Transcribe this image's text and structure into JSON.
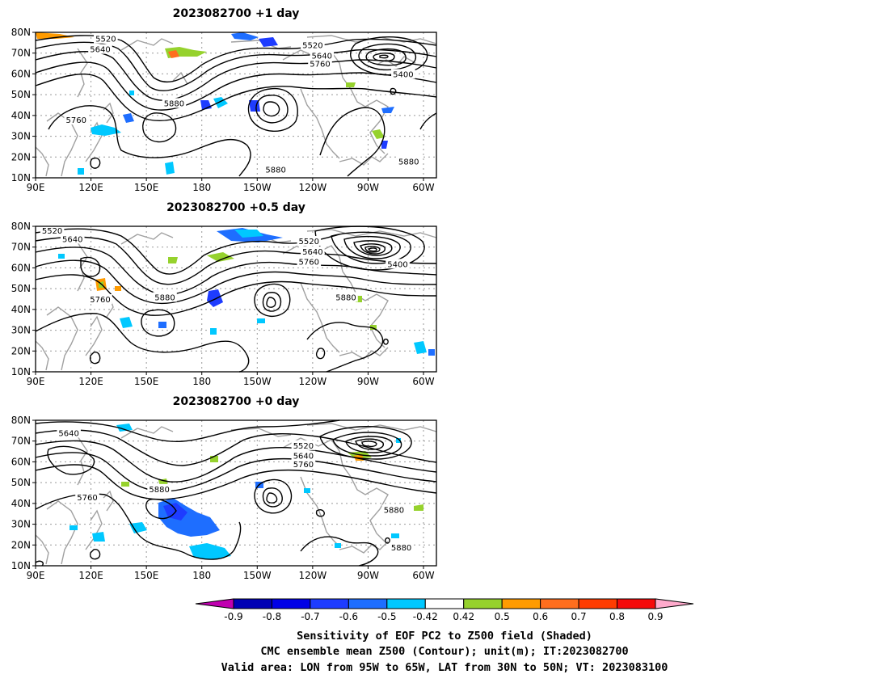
{
  "panels": [
    {
      "title": "2023082700  +1 day",
      "contour_labels": [
        {
          "text": "5520",
          "lon": 128,
          "lat": 77
        },
        {
          "text": "5640",
          "lon": 125,
          "lat": 72
        },
        {
          "text": "5520",
          "lon": 240,
          "lat": 74
        },
        {
          "text": "5640",
          "lon": 245,
          "lat": 69
        },
        {
          "text": "5760",
          "lon": 244,
          "lat": 65
        },
        {
          "text": "5400",
          "lon": 289,
          "lat": 60
        },
        {
          "text": "5880",
          "lon": 165,
          "lat": 46
        },
        {
          "text": "5760",
          "lon": 112,
          "lat": 38
        },
        {
          "text": "5880",
          "lon": 220,
          "lat": 14
        },
        {
          "text": "5880",
          "lon": 292,
          "lat": 18
        }
      ]
    },
    {
      "title": "2023082700  +0.5 day",
      "contour_labels": [
        {
          "text": "5520",
          "lon": 99,
          "lat": 78
        },
        {
          "text": "5640",
          "lon": 110,
          "lat": 74
        },
        {
          "text": "5520",
          "lon": 238,
          "lat": 73
        },
        {
          "text": "5640",
          "lon": 240,
          "lat": 68
        },
        {
          "text": "5760",
          "lon": 238,
          "lat": 63
        },
        {
          "text": "5400",
          "lon": 286,
          "lat": 62
        },
        {
          "text": "5880",
          "lon": 160,
          "lat": 46
        },
        {
          "text": "5760",
          "lon": 125,
          "lat": 45
        },
        {
          "text": "5880",
          "lon": 258,
          "lat": 46
        }
      ]
    },
    {
      "title": "2023082700  +0 day",
      "contour_labels": [
        {
          "text": "5640",
          "lon": 108,
          "lat": 74
        },
        {
          "text": "5520",
          "lon": 235,
          "lat": 68
        },
        {
          "text": "5640",
          "lon": 235,
          "lat": 63
        },
        {
          "text": "5760",
          "lon": 235,
          "lat": 59
        },
        {
          "text": "5760",
          "lon": 118,
          "lat": 43
        },
        {
          "text": "5880",
          "lon": 157,
          "lat": 47
        },
        {
          "text": "5880",
          "lon": 284,
          "lat": 37
        },
        {
          "text": "5880",
          "lon": 288,
          "lat": 19
        }
      ]
    }
  ],
  "axes": {
    "lon_range": [
      90,
      307
    ],
    "lat_range": [
      10,
      80
    ],
    "x_ticks": [
      {
        "lon": 90,
        "label": "90E"
      },
      {
        "lon": 120,
        "label": "120E"
      },
      {
        "lon": 150,
        "label": "150E"
      },
      {
        "lon": 180,
        "label": "180"
      },
      {
        "lon": 210,
        "label": "150W"
      },
      {
        "lon": 240,
        "label": "120W"
      },
      {
        "lon": 270,
        "label": "90W"
      },
      {
        "lon": 300,
        "label": "60W"
      }
    ],
    "y_ticks": [
      {
        "lat": 10,
        "label": "10N"
      },
      {
        "lat": 20,
        "label": "20N"
      },
      {
        "lat": 30,
        "label": "30N"
      },
      {
        "lat": 40,
        "label": "40N"
      },
      {
        "lat": 50,
        "label": "50N"
      },
      {
        "lat": 60,
        "label": "60N"
      },
      {
        "lat": 70,
        "label": "70N"
      },
      {
        "lat": 80,
        "label": "80N"
      }
    ]
  },
  "colorbar": {
    "labels": [
      "-0.9",
      "-0.8",
      "-0.7",
      "-0.6",
      "-0.5",
      "-0.42",
      "0.42",
      "0.5",
      "0.6",
      "0.7",
      "0.8",
      "0.9"
    ],
    "colors": [
      "#0000b4",
      "#0000e6",
      "#1e3cff",
      "#1e6eff",
      "#00c8ff",
      "#ffffff",
      "#96d22d",
      "#ff9b00",
      "#ff6e1e",
      "#ff3c00",
      "#f50a0a"
    ],
    "low_extend_color": "#c000b0",
    "high_extend_color": "#ffaacc"
  },
  "caption": [
    "Sensitivity of EOF PC2 to Z500 field (Shaded)",
    "CMC ensemble mean Z500 (Contour); unit(m); IT:2023082700",
    "Valid area: LON from 95W to 65W, LAT from 30N to 50N; VT: 2023083100"
  ],
  "colors": {
    "contour": "#000000",
    "coast": "#a0a0a0",
    "grid": "#999999",
    "neg_blob": "#1e6eff",
    "neg_blob_light": "#00c8ff",
    "pos_blob": "#96d22d",
    "pos_blob_orange": "#ff9b00"
  }
}
